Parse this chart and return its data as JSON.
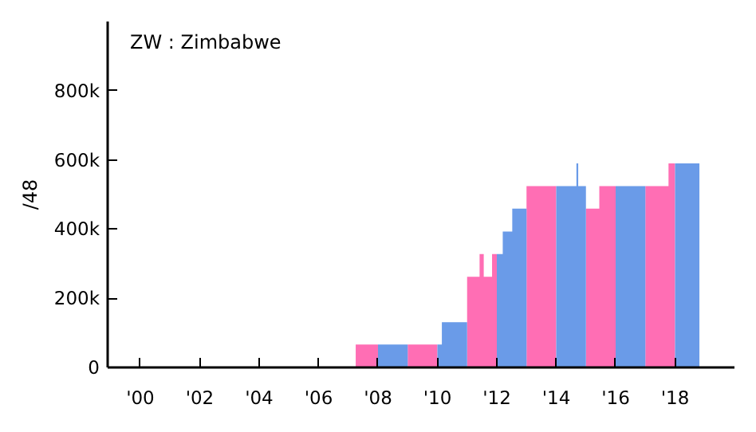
{
  "chart_data": {
    "type": "area",
    "title": "ZW : Zimbabwe",
    "ylabel": "/48",
    "series": [
      {
        "color": "#ff6eb4",
        "x": [
          2007.25,
          2007.25,
          2008,
          2008,
          null,
          2009,
          2009,
          2010,
          2010,
          null,
          2011,
          2011,
          2011.42,
          2011.42,
          2011.56,
          2011.56,
          2011.84,
          2011.84,
          2012,
          2012,
          null,
          2013,
          2013,
          2014,
          2014,
          null,
          2015,
          2015,
          2015.45,
          2015.45,
          2016,
          2016,
          null,
          2017,
          2017,
          2017.78,
          2017.78,
          2018,
          2018
        ],
        "values": [
          0,
          66000,
          66000,
          0,
          null,
          0,
          66000,
          66000,
          0,
          null,
          0,
          262000,
          262000,
          328000,
          328000,
          262000,
          262000,
          328000,
          328000,
          0,
          null,
          0,
          524000,
          524000,
          0,
          null,
          0,
          459000,
          459000,
          524000,
          524000,
          0,
          null,
          0,
          524000,
          524000,
          590000,
          590000,
          0
        ]
      },
      {
        "color": "#6a9be8",
        "x": [
          2008,
          2008,
          2009,
          2009,
          null,
          2010,
          2010,
          2010.15,
          2010.15,
          2011,
          2011,
          null,
          2012,
          2012,
          2012.2,
          2012.2,
          2012.52,
          2012.52,
          2013,
          2013,
          null,
          2014,
          2014,
          2014.68,
          2014.68,
          2014.74,
          2014.74,
          2015,
          2015,
          null,
          2016,
          2016,
          2017,
          2017,
          null,
          2018,
          2018,
          2018.82,
          2018.82
        ],
        "values": [
          0,
          66000,
          66000,
          0,
          null,
          0,
          66000,
          66000,
          131000,
          131000,
          0,
          null,
          0,
          328000,
          328000,
          393000,
          393000,
          459000,
          459000,
          0,
          null,
          0,
          524000,
          524000,
          590000,
          590000,
          524000,
          524000,
          0,
          null,
          0,
          524000,
          524000,
          0,
          null,
          0,
          590000,
          590000,
          0
        ]
      }
    ],
    "xlim": [
      1998.9,
      2020
    ],
    "ylim": [
      0,
      1000000
    ],
    "xticks": [
      {
        "value": 2000,
        "label": "'00"
      },
      {
        "value": 2002,
        "label": "'02"
      },
      {
        "value": 2004,
        "label": "'04"
      },
      {
        "value": 2006,
        "label": "'06"
      },
      {
        "value": 2008,
        "label": "'08"
      },
      {
        "value": 2010,
        "label": "'10"
      },
      {
        "value": 2012,
        "label": "'12"
      },
      {
        "value": 2014,
        "label": "'14"
      },
      {
        "value": 2016,
        "label": "'16"
      },
      {
        "value": 2018,
        "label": "'18"
      }
    ],
    "yticks": [
      0,
      {
        "value": 200000,
        "label": "200k"
      },
      {
        "value": 400000,
        "label": "400k"
      },
      {
        "value": 600000,
        "label": "600k"
      },
      {
        "value": 800000,
        "label": "800k"
      }
    ],
    "grid": false
  }
}
